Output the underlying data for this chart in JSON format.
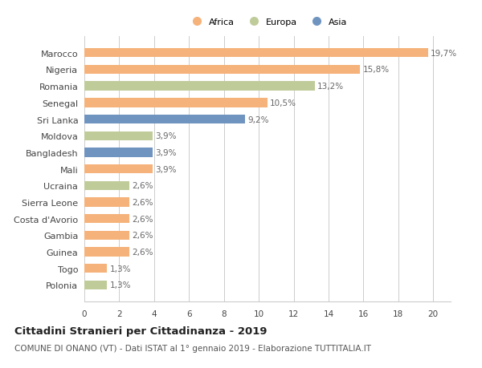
{
  "categories": [
    "Marocco",
    "Nigeria",
    "Romania",
    "Senegal",
    "Sri Lanka",
    "Moldova",
    "Bangladesh",
    "Mali",
    "Ucraina",
    "Sierra Leone",
    "Costa d'Avorio",
    "Gambia",
    "Guinea",
    "Togo",
    "Polonia"
  ],
  "values": [
    19.7,
    15.8,
    13.2,
    10.5,
    9.2,
    3.9,
    3.9,
    3.9,
    2.6,
    2.6,
    2.6,
    2.6,
    2.6,
    1.3,
    1.3
  ],
  "labels": [
    "19,7%",
    "15,8%",
    "13,2%",
    "10,5%",
    "9,2%",
    "3,9%",
    "3,9%",
    "3,9%",
    "2,6%",
    "2,6%",
    "2,6%",
    "2,6%",
    "2,6%",
    "1,3%",
    "1,3%"
  ],
  "continents": [
    "Africa",
    "Africa",
    "Europa",
    "Africa",
    "Asia",
    "Europa",
    "Asia",
    "Africa",
    "Europa",
    "Africa",
    "Africa",
    "Africa",
    "Africa",
    "Africa",
    "Europa"
  ],
  "colors": {
    "Africa": "#F5B27A",
    "Europa": "#BFCC9A",
    "Asia": "#7094C0"
  },
  "xlim": [
    0,
    21
  ],
  "xticks": [
    0,
    2,
    4,
    6,
    8,
    10,
    12,
    14,
    16,
    18,
    20
  ],
  "title": "Cittadini Stranieri per Cittadinanza - 2019",
  "subtitle": "COMUNE DI ONANO (VT) - Dati ISTAT al 1° gennaio 2019 - Elaborazione TUTTITALIA.IT",
  "background_color": "#ffffff",
  "grid_color": "#cccccc",
  "bar_height": 0.55,
  "label_fontsize": 7.5,
  "tick_fontsize": 7.5,
  "ytick_fontsize": 8,
  "title_fontsize": 9.5,
  "subtitle_fontsize": 7.5
}
